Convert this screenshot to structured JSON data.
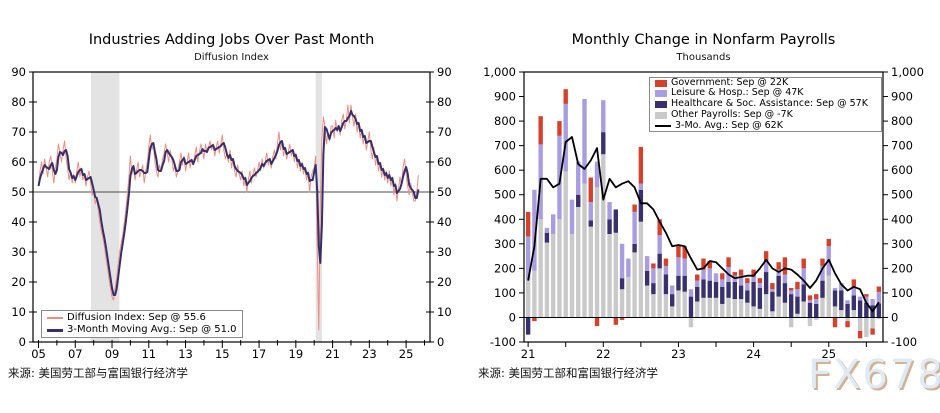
{
  "watermark": "FX678",
  "chart_data": [
    {
      "type": "line",
      "title": "Industries Adding Jobs Over Past Month",
      "subtitle": "Diffusion Index",
      "source": "来源: 美国劳工部与富国银行经济学",
      "start_year": 2005,
      "points_per_year": 12,
      "xlim": [
        2004.7,
        2026.3
      ],
      "ylim": [
        0,
        90
      ],
      "y_tick_step": 10,
      "y_tick_labels": [
        "0",
        "10",
        "20",
        "30",
        "40",
        "50",
        "60",
        "70",
        "80",
        "90"
      ],
      "x_tick_labels": [
        "05",
        "07",
        "09",
        "11",
        "13",
        "15",
        "17",
        "19",
        "21",
        "23",
        "25"
      ],
      "reference_line": 50,
      "recession_color": "#e3e3e3",
      "recession_bands": [
        [
          2007.85,
          2009.4
        ],
        [
          2020.08,
          2020.42
        ]
      ],
      "series": [
        {
          "name": "diffusion-index",
          "legend_label": "Diffusion Index: Sep @ 55.6",
          "color": "#ec8f80",
          "last_value": 55.6,
          "values": [
            52,
            57,
            60,
            56,
            61,
            58,
            55,
            60,
            62,
            57,
            53,
            58,
            61,
            66,
            63,
            60,
            64,
            67,
            61,
            58,
            54,
            57,
            53,
            56,
            53,
            57,
            60,
            55,
            58,
            54,
            56,
            52,
            55,
            57,
            53,
            49,
            50,
            46,
            48,
            44,
            40,
            37,
            35,
            32,
            28,
            25,
            21,
            18,
            15,
            14,
            18,
            21,
            26,
            30,
            33,
            36,
            40,
            44,
            49,
            55,
            62,
            56,
            58,
            54,
            57,
            60,
            55,
            57,
            59,
            53,
            57,
            60,
            65,
            69,
            64,
            66,
            60,
            57,
            55,
            59,
            57,
            61,
            63,
            66,
            63,
            60,
            64,
            61,
            57,
            59,
            55,
            57,
            60,
            63,
            59,
            62,
            57,
            60,
            63,
            58,
            61,
            59,
            62,
            65,
            60,
            63,
            66,
            64,
            61,
            66,
            63,
            65,
            67,
            64,
            66,
            62,
            65,
            67,
            63,
            66,
            69,
            64,
            61,
            63,
            60,
            64,
            58,
            61,
            57,
            55,
            59,
            56,
            54,
            57,
            52,
            55,
            50,
            54,
            57,
            53,
            56,
            58,
            55,
            57,
            60,
            57,
            61,
            58,
            60,
            63,
            59,
            61,
            58,
            62,
            64,
            61,
            66,
            70,
            64,
            67,
            62,
            65,
            61,
            63,
            66,
            62,
            64,
            60,
            63,
            58,
            61,
            57,
            60,
            56,
            58,
            54,
            57,
            50,
            55,
            57,
            58,
            62,
            30,
            4,
            45,
            68,
            75,
            72,
            66,
            70,
            67,
            72,
            72,
            68,
            74,
            70,
            72,
            69,
            74,
            76,
            71,
            74,
            79,
            73,
            79,
            75,
            72,
            76,
            70,
            73,
            68,
            71,
            66,
            69,
            64,
            67,
            70,
            64,
            61,
            65,
            59,
            62,
            57,
            60,
            55,
            58,
            54,
            57,
            53,
            57,
            52,
            55,
            49,
            53,
            47,
            51,
            55,
            52,
            58,
            61,
            56,
            52,
            49,
            53,
            50,
            47,
            47,
            50,
            55.6
          ]
        },
        {
          "name": "three-month-moving-avg",
          "legend_label": "3-Month Moving Avg.: Sep @ 51.0",
          "color": "#35306b",
          "last_value": 51.0,
          "derived": "3-month moving average of diffusion-index"
        }
      ]
    },
    {
      "type": "bar",
      "title": "Monthly Change in Nonfarm Payrolls",
      "subtitle": "Thousands",
      "source": "来源: 美国劳工部和富国银行经济学",
      "start_year": 2021,
      "months": 57,
      "ylim": [
        -100,
        1000
      ],
      "y_tick_step": 100,
      "y_tick_labels": [
        "-100",
        "0",
        "100",
        "200",
        "300",
        "400",
        "500",
        "600",
        "700",
        "800",
        "900",
        "1,000"
      ],
      "x_tick_labels": [
        "21",
        "22",
        "23",
        "24",
        "25"
      ],
      "stack_order_bottom_to_top": [
        "Other Payrolls",
        "Healthcare & Soc. Assistance",
        "Leisure & Hosp.",
        "Government"
      ],
      "series": [
        {
          "name": "other-payrolls",
          "legend_label": "Other Payrolls: Sep @ -7K",
          "color": "#c9c9c9",
          "values": [
            155,
            190,
            400,
            305,
            340,
            400,
            595,
            340,
            450,
            545,
            370,
            530,
            665,
            340,
            345,
            115,
            165,
            265,
            390,
            130,
            95,
            200,
            95,
            45,
            110,
            105,
            -40,
            65,
            80,
            80,
            80,
            55,
            80,
            75,
            75,
            60,
            45,
            35,
            95,
            25,
            85,
            60,
            -40,
            15,
            65,
            -35,
            -10,
            80,
            170,
            45,
            30,
            -15,
            30,
            -55,
            -80,
            -45,
            -7
          ]
        },
        {
          "name": "healthcare-soc-assistance",
          "legend_label": "Healthcare & Soc. Assistance: Sep @ 57K",
          "color": "#39316e",
          "values": [
            -70,
            0,
            0,
            40,
            0,
            0,
            0,
            0,
            50,
            0,
            25,
            0,
            90,
            60,
            95,
            45,
            0,
            35,
            130,
            60,
            45,
            60,
            80,
            50,
            60,
            65,
            85,
            60,
            75,
            70,
            65,
            70,
            65,
            70,
            55,
            50,
            100,
            85,
            90,
            80,
            85,
            80,
            95,
            70,
            70,
            60,
            55,
            70,
            0,
            65,
            80,
            55,
            60,
            70,
            60,
            50,
            57
          ]
        },
        {
          "name": "leisure-hosp",
          "legend_label": "Leisure & Hosp.: Sep @ 47K",
          "color": "#a89de0",
          "values": [
            175,
            330,
            305,
            20,
            80,
            340,
            275,
            140,
            135,
            345,
            75,
            105,
            130,
            70,
            0,
            140,
            75,
            130,
            25,
            60,
            60,
            75,
            35,
            35,
            75,
            70,
            30,
            25,
            40,
            50,
            35,
            30,
            60,
            25,
            40,
            30,
            20,
            20,
            45,
            10,
            25,
            35,
            15,
            30,
            65,
            10,
            20,
            60,
            120,
            10,
            30,
            15,
            35,
            15,
            25,
            25,
            47
          ]
        },
        {
          "name": "government",
          "legend_label": "Government: Sep @ 22K",
          "color": "#d6412b",
          "values": [
            100,
            -15,
            115,
            0,
            0,
            60,
            60,
            0,
            0,
            0,
            100,
            -35,
            0,
            0,
            -30,
            -10,
            0,
            30,
            150,
            0,
            20,
            65,
            30,
            0,
            50,
            50,
            0,
            25,
            45,
            30,
            0,
            25,
            40,
            15,
            25,
            20,
            30,
            20,
            40,
            25,
            30,
            70,
            10,
            30,
            40,
            20,
            20,
            30,
            30,
            -40,
            0,
            -25,
            30,
            -30,
            10,
            -25,
            22
          ]
        }
      ],
      "ma_line": {
        "name": "three-mo-avg",
        "legend_label": "3-Mo. Avg.: Sep @ 62K",
        "color": "#000000",
        "values": [
          150,
          290,
          565,
          565,
          530,
          545,
          715,
          735,
          625,
          605,
          640,
          690,
          480,
          565,
          530,
          545,
          555,
          530,
          465,
          465,
          440,
          390,
          345,
          290,
          295,
          290,
          240,
          195,
          200,
          230,
          225,
          200,
          175,
          160,
          165,
          170,
          170,
          200,
          235,
          200,
          185,
          200,
          195,
          175,
          150,
          120,
          150,
          200,
          235,
          180,
          135,
          110,
          125,
          115,
          60,
          25,
          62
        ]
      }
    }
  ]
}
